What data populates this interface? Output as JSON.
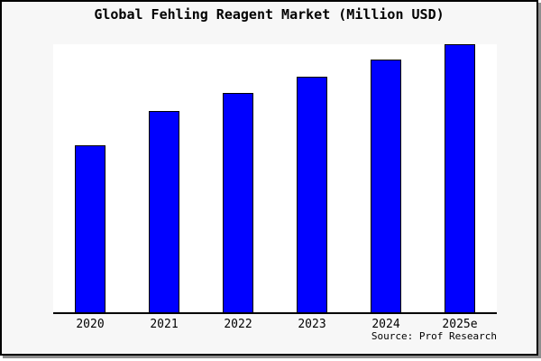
{
  "title": "Global Fehling Reagent Market (Million USD)",
  "source_note": "Source: Prof Research",
  "colors": {
    "bar_fill": "#0000ff",
    "bar_border": "#000000",
    "canvas_background": "#f7f7f7",
    "plot_background": "#ffffff",
    "axis": "#000000",
    "frame_border": "#000000",
    "frame_shadow": "#8e8e8e",
    "text": "#000000"
  },
  "chart_data": {
    "type": "bar",
    "title": "Global Fehling Reagent Market (Million USD)",
    "categories": [
      "2020",
      "2021",
      "2022",
      "2023",
      "2024",
      "2025e"
    ],
    "values": [
      62.3,
      75.1,
      81.8,
      87.9,
      94.3,
      100
    ],
    "value_note": "No y-axis ticks or data labels are shown in the chart; values are relative bar heights normalized so 2025e = 100 (pixel heights approx 185, 223, 243, 261, 280, 297).",
    "xlabel": "",
    "ylabel": "",
    "ylim": [
      0,
      100
    ],
    "grid": false,
    "legend": false,
    "y_axis_labels_visible": false,
    "annotations": [
      "Source: Prof Research"
    ]
  }
}
